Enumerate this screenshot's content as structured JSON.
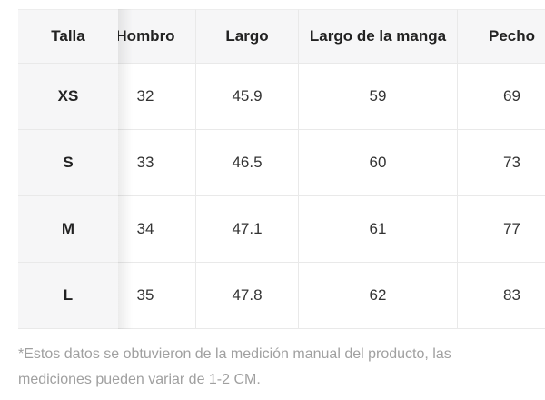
{
  "size_table": {
    "headers": {
      "talla": "Talla",
      "hombro": "Hombro",
      "largo": "Largo",
      "manga": "Largo de la manga",
      "pecho": "Pecho"
    },
    "rows": [
      {
        "talla": "XS",
        "hombro": "32",
        "largo": "45.9",
        "manga": "59",
        "pecho": "69"
      },
      {
        "talla": "S",
        "hombro": "33",
        "largo": "46.5",
        "manga": "60",
        "pecho": "73"
      },
      {
        "talla": "M",
        "hombro": "34",
        "largo": "47.1",
        "manga": "61",
        "pecho": "77"
      },
      {
        "talla": "L",
        "hombro": "35",
        "largo": "47.8",
        "manga": "62",
        "pecho": "83"
      }
    ]
  },
  "footnote": {
    "line1": "*Estos datos se obtuvieron de la medición manual del producto, las",
    "line2": "mediciones pueden variar de 1-2 CM."
  },
  "colors": {
    "header_bg": "#f6f6f7",
    "border": "#e9e9e9",
    "header_text": "#222222",
    "cell_text": "#333333",
    "footnote_text": "#a0a0a0"
  }
}
